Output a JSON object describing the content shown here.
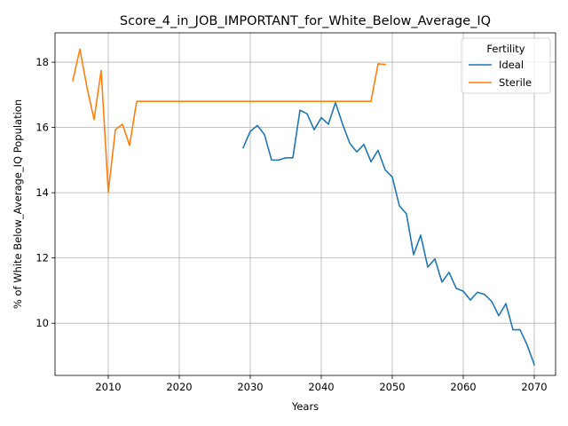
{
  "chart_data": {
    "type": "line",
    "title": "Score_4_in_JOB_IMPORTANT_for_White_Below_Average_IQ",
    "xlabel": "Years",
    "ylabel": "% of White Below_Average_IQ Population",
    "xlim": [
      2002.5,
      2073
    ],
    "ylim": [
      8.4,
      18.9
    ],
    "xticks": [
      2010,
      2020,
      2030,
      2040,
      2050,
      2060,
      2070
    ],
    "yticks": [
      10,
      12,
      14,
      16,
      18
    ],
    "grid": true,
    "legend": {
      "title": "Fertility",
      "placement": "top-right"
    },
    "series": [
      {
        "name": "Ideal",
        "color": "#1f77b4",
        "x": [
          2029,
          2030,
          2031,
          2032,
          2033,
          2034,
          2035,
          2036,
          2037,
          2038,
          2039,
          2040,
          2041,
          2042,
          2043,
          2044,
          2045,
          2046,
          2047,
          2048,
          2049,
          2050,
          2051,
          2052,
          2053,
          2054,
          2055,
          2056,
          2057,
          2058,
          2059,
          2060,
          2061,
          2062,
          2063,
          2064,
          2065,
          2066,
          2067,
          2068,
          2069,
          2070
        ],
        "y": [
          15.38,
          15.88,
          16.06,
          15.78,
          15.0,
          15.0,
          15.07,
          15.07,
          16.53,
          16.42,
          15.93,
          16.3,
          16.1,
          16.76,
          16.1,
          15.52,
          15.25,
          15.48,
          14.95,
          15.3,
          14.7,
          14.48,
          13.6,
          13.35,
          12.1,
          12.7,
          11.72,
          11.97,
          11.26,
          11.56,
          11.07,
          10.98,
          10.71,
          10.95,
          10.88,
          10.67,
          10.23,
          10.6,
          9.8,
          9.8,
          9.33,
          8.73
        ]
      },
      {
        "name": "Sterile",
        "color": "#ff7f0e",
        "x": [
          2005,
          2006,
          2007,
          2008,
          2009,
          2010,
          2011,
          2012,
          2013,
          2014,
          2015,
          2016,
          2017,
          2018,
          2019,
          2020,
          2021,
          2022,
          2023,
          2024,
          2025,
          2026,
          2027,
          2028,
          2029,
          2030,
          2031,
          2032,
          2033,
          2034,
          2035,
          2036,
          2037,
          2038,
          2039,
          2040,
          2041,
          2042,
          2043,
          2044,
          2045,
          2046,
          2047,
          2048,
          2049
        ],
        "y": [
          17.43,
          18.4,
          17.23,
          16.24,
          17.75,
          14.02,
          15.93,
          16.1,
          15.45,
          16.8,
          16.8,
          16.8,
          16.8,
          16.8,
          16.8,
          16.8,
          16.8,
          16.8,
          16.8,
          16.8,
          16.8,
          16.8,
          16.8,
          16.8,
          16.8,
          16.8,
          16.8,
          16.8,
          16.8,
          16.8,
          16.8,
          16.8,
          16.8,
          16.8,
          16.8,
          16.8,
          16.8,
          16.8,
          16.8,
          16.8,
          16.8,
          16.8,
          16.8,
          17.95,
          17.93
        ]
      }
    ]
  }
}
